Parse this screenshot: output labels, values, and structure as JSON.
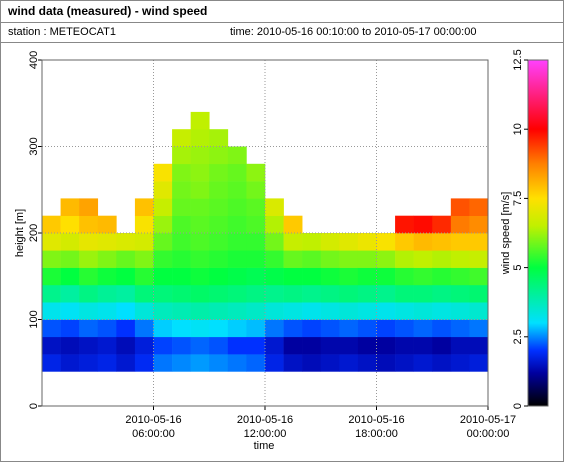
{
  "chart_data": {
    "type": "heatmap",
    "title": "wind data (measured) - wind speed",
    "station": "station : METEOCAT1",
    "period": "time: 2010-05-16 00:10:00 to 2010-05-17 00:00:00",
    "xlabel": "time",
    "ylabel": "height [m]",
    "clabel": "wind speed [m/s]",
    "xlim": [
      "2010-05-16 00:00:00",
      "2010-05-17 00:00:00"
    ],
    "xticks": [
      {
        "value": "2010-05-16 06:00:00",
        "label": [
          "2010-05-16",
          "06:00:00"
        ]
      },
      {
        "value": "2010-05-16 12:00:00",
        "label": [
          "2010-05-16",
          "12:00:00"
        ]
      },
      {
        "value": "2010-05-16 18:00:00",
        "label": [
          "2010-05-16",
          "18:00:00"
        ]
      },
      {
        "value": "2010-05-17 00:00:00",
        "label": [
          "2010-05-17",
          "00:00:00"
        ]
      }
    ],
    "ylim": [
      0,
      400
    ],
    "yticks": [
      0,
      100,
      200,
      300,
      400
    ],
    "clim": [
      0,
      12.5
    ],
    "cticks": [
      0,
      2.5,
      5,
      7.5,
      10,
      12.5
    ],
    "colorscale": [
      [
        0,
        "#000000"
      ],
      [
        1.2,
        "#0000a0"
      ],
      [
        2,
        "#0030ff"
      ],
      [
        3,
        "#00e0ff"
      ],
      [
        5,
        "#00ff40"
      ],
      [
        6.5,
        "#c0f000"
      ],
      [
        7.5,
        "#ffe000"
      ],
      [
        8.75,
        "#ff8000"
      ],
      [
        10,
        "#ff0000"
      ],
      [
        12.5,
        "#ff40ff"
      ]
    ],
    "grid": true,
    "x": [
      "2010-05-16 00:00:00",
      "2010-05-16 01:00:00",
      "2010-05-16 02:00:00",
      "2010-05-16 03:00:00",
      "2010-05-16 04:00:00",
      "2010-05-16 05:00:00",
      "2010-05-16 06:00:00",
      "2010-05-16 07:00:00",
      "2010-05-16 08:00:00",
      "2010-05-16 09:00:00",
      "2010-05-16 10:00:00",
      "2010-05-16 11:00:00",
      "2010-05-16 12:00:00",
      "2010-05-16 13:00:00",
      "2010-05-16 14:00:00",
      "2010-05-16 15:00:00",
      "2010-05-16 16:00:00",
      "2010-05-16 17:00:00",
      "2010-05-16 18:00:00",
      "2010-05-16 19:00:00",
      "2010-05-16 20:00:00",
      "2010-05-16 21:00:00",
      "2010-05-16 22:00:00",
      "2010-05-16 23:00:00"
    ],
    "y": [
      40,
      60,
      80,
      100,
      120,
      140,
      160,
      180,
      200,
      220,
      240,
      260,
      280,
      300,
      320,
      340
    ],
    "values": [
      [
        1.8,
        1.5,
        2.2,
        3.2,
        4.2,
        5.2,
        6.0,
        7.0,
        7.8,
        null,
        null,
        null,
        null,
        null,
        null,
        null
      ],
      [
        1.6,
        1.4,
        2.1,
        3.1,
        4.0,
        5.0,
        5.9,
        6.8,
        7.5,
        8.0,
        null,
        null,
        null,
        null,
        null,
        null
      ],
      [
        1.7,
        1.5,
        2.3,
        3.3,
        4.3,
        5.3,
        6.2,
        7.1,
        7.9,
        8.3,
        null,
        null,
        null,
        null,
        null,
        null
      ],
      [
        1.8,
        1.6,
        2.2,
        3.2,
        4.1,
        5.1,
        6.0,
        7.0,
        8.0,
        null,
        null,
        null,
        null,
        null,
        null,
        null
      ],
      [
        1.6,
        1.4,
        2.0,
        3.0,
        4.0,
        5.0,
        5.8,
        6.9,
        null,
        null,
        null,
        null,
        null,
        null,
        null,
        null
      ],
      [
        1.9,
        1.7,
        2.4,
        3.4,
        4.4,
        5.3,
        6.0,
        6.8,
        7.4,
        7.9,
        null,
        null,
        null,
        null,
        null,
        null
      ],
      [
        2.4,
        2.1,
        2.9,
        3.7,
        4.4,
        5.0,
        5.4,
        5.8,
        6.2,
        6.6,
        7.0,
        7.4,
        null,
        null,
        null,
        null
      ],
      [
        2.5,
        2.2,
        3.0,
        3.8,
        4.5,
        5.0,
        5.3,
        5.5,
        5.6,
        5.8,
        5.9,
        6.0,
        6.3,
        6.6,
        null,
        null
      ],
      [
        2.6,
        2.3,
        3.1,
        3.9,
        4.6,
        5.1,
        5.4,
        5.6,
        5.7,
        5.8,
        6.0,
        6.1,
        6.2,
        6.4,
        6.5,
        null
      ],
      [
        2.5,
        2.2,
        3.0,
        3.8,
        4.5,
        5.0,
        5.3,
        5.5,
        5.6,
        5.7,
        5.8,
        5.9,
        6.1,
        6.3,
        null,
        null
      ],
      [
        2.4,
        2.0,
        2.9,
        3.7,
        4.4,
        4.9,
        5.2,
        5.4,
        5.5,
        5.6,
        5.7,
        5.8,
        6.0,
        null,
        null,
        null
      ],
      [
        2.3,
        2.0,
        2.8,
        3.6,
        4.3,
        4.8,
        5.2,
        5.4,
        5.6,
        5.7,
        5.9,
        6.1,
        null,
        null,
        null,
        null
      ],
      [
        1.8,
        1.6,
        2.4,
        3.4,
        4.2,
        4.9,
        5.4,
        5.9,
        6.4,
        6.9,
        null,
        null,
        null,
        null,
        null,
        null
      ],
      [
        1.5,
        1.2,
        2.2,
        3.3,
        4.3,
        5.0,
        5.8,
        6.6,
        7.8,
        null,
        null,
        null,
        null,
        null,
        null,
        null
      ],
      [
        1.4,
        1.2,
        2.1,
        3.2,
        4.2,
        5.0,
        5.7,
        6.5,
        null,
        null,
        null,
        null,
        null,
        null,
        null,
        null
      ],
      [
        1.5,
        1.3,
        2.2,
        3.3,
        4.3,
        5.1,
        5.9,
        6.8,
        null,
        null,
        null,
        null,
        null,
        null,
        null,
        null
      ],
      [
        1.6,
        1.3,
        2.3,
        3.4,
        4.4,
        5.2,
        6.0,
        7.0,
        null,
        null,
        null,
        null,
        null,
        null,
        null,
        null
      ],
      [
        1.5,
        1.2,
        2.2,
        3.3,
        4.3,
        5.1,
        6.0,
        7.2,
        null,
        null,
        null,
        null,
        null,
        null,
        null,
        null
      ],
      [
        1.4,
        1.2,
        2.1,
        3.2,
        4.2,
        5.1,
        6.1,
        7.4,
        null,
        null,
        null,
        null,
        null,
        null,
        null,
        null
      ],
      [
        1.5,
        1.3,
        2.2,
        3.3,
        4.4,
        5.3,
        6.4,
        7.8,
        9.8,
        null,
        null,
        null,
        null,
        null,
        null,
        null
      ],
      [
        1.6,
        1.3,
        2.3,
        3.4,
        4.4,
        5.4,
        6.5,
        8.0,
        9.9,
        null,
        null,
        null,
        null,
        null,
        null,
        null
      ],
      [
        1.5,
        1.2,
        2.2,
        3.3,
        4.3,
        5.3,
        6.4,
        7.9,
        9.6,
        null,
        null,
        null,
        null,
        null,
        null,
        null
      ],
      [
        1.6,
        1.4,
        2.3,
        3.4,
        4.4,
        5.4,
        6.5,
        7.8,
        8.8,
        9.2,
        null,
        null,
        null,
        null,
        null,
        null
      ],
      [
        1.7,
        1.4,
        2.4,
        3.5,
        4.5,
        5.5,
        6.6,
        7.8,
        8.6,
        9.0,
        null,
        null,
        null,
        null,
        null,
        null
      ]
    ]
  }
}
